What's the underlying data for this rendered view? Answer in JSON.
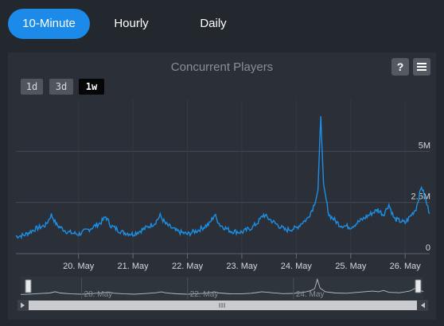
{
  "tabs": [
    {
      "label": "10-Minute",
      "active": true
    },
    {
      "label": "Hourly",
      "active": false
    },
    {
      "label": "Daily",
      "active": false
    }
  ],
  "chart_title": "Concurrent Players",
  "help_icon": "help-icon",
  "menu_icon": "menu-icon",
  "range_buttons": [
    {
      "label": "1d",
      "selected": false
    },
    {
      "label": "3d",
      "selected": false
    },
    {
      "label": "1w",
      "selected": true
    }
  ],
  "colors": {
    "accent": "#1b8ae8",
    "series": "#1c8fe6",
    "background": "#23272e",
    "panel": "#2b3038"
  },
  "chart_data": {
    "type": "line",
    "title": "Concurrent Players",
    "x_tick_labels": [
      "20. May",
      "21. May",
      "22. May",
      "23. May",
      "24. May",
      "25. May",
      "26. May"
    ],
    "y_tick_labels": [
      "0",
      "2.5M",
      "5M"
    ],
    "ylim": [
      0,
      7500000
    ],
    "x_unit": "days since 19. May 00:00",
    "xlim": [
      -0.15,
      7.45
    ],
    "series": [
      {
        "name": "",
        "x": [
          -0.15,
          0.0,
          0.2,
          0.4,
          0.5,
          0.6,
          0.8,
          1.0,
          1.2,
          1.4,
          1.5,
          1.6,
          1.8,
          2.0,
          2.2,
          2.4,
          2.5,
          2.6,
          2.8,
          3.0,
          3.2,
          3.4,
          3.5,
          3.6,
          3.8,
          4.0,
          4.2,
          4.3,
          4.4,
          4.6,
          4.8,
          5.0,
          5.1,
          5.2,
          5.3,
          5.35,
          5.4,
          5.45,
          5.5,
          5.6,
          5.8,
          6.0,
          6.2,
          6.4,
          6.5,
          6.6,
          6.7,
          6.8,
          7.0,
          7.2,
          7.3,
          7.45
        ],
        "values": [
          850000,
          900000,
          1200000,
          1400000,
          1900000,
          1400000,
          1050000,
          950000,
          1200000,
          1500000,
          1800000,
          1350000,
          1050000,
          950000,
          1200000,
          1500000,
          1850000,
          1450000,
          1100000,
          950000,
          1150000,
          1450000,
          1900000,
          1400000,
          1100000,
          1050000,
          1300000,
          1550000,
          1900000,
          1500000,
          1150000,
          1250000,
          1500000,
          1700000,
          2200000,
          2600000,
          3100000,
          6800000,
          3300000,
          1900000,
          1400000,
          1300000,
          1650000,
          2000000,
          2150000,
          1900000,
          2400000,
          1700000,
          1500000,
          2200000,
          3300000,
          1950000
        ]
      }
    ]
  },
  "navigator": {
    "tick_labels": [
      "20. May",
      "22. May",
      "24. May"
    ],
    "scroll_grip": "grip-icon",
    "left_arrow": "left-arrow-icon",
    "right_arrow": "right-arrow-icon"
  }
}
